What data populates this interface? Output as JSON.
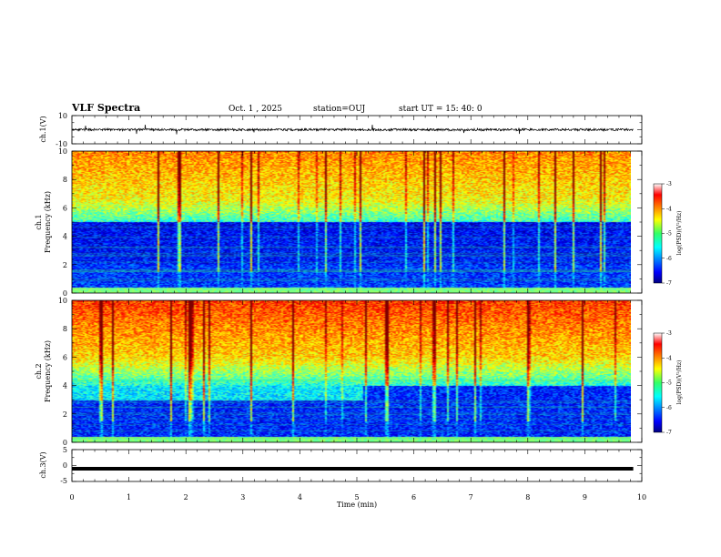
{
  "header": {
    "title": "VLF Spectra",
    "date": "Oct. 1 , 2025",
    "station": "station=OUJ",
    "start": "start  UT =  15: 40: 0"
  },
  "chart_data": [
    {
      "type": "line",
      "name": "ch1-waveform",
      "ylabel": "ch.1(V)",
      "ylim": [
        -10,
        10
      ],
      "ytick_labels": [
        "10",
        "-10"
      ],
      "xlim": [
        0,
        10
      ],
      "data_extent_min": 9.85,
      "baseline": 0
    },
    {
      "type": "heatmap",
      "name": "ch1-spectrogram",
      "ylabel": "ch.1\nFrequency (kHz)",
      "ylim": [
        0,
        10
      ],
      "ytick_labels": [
        "0",
        "2",
        "4",
        "6",
        "8",
        "10"
      ],
      "xlim": [
        0,
        10
      ],
      "data_extent_min": 9.85,
      "value_range": [
        -7,
        -3
      ],
      "colorbar_label": "log(PSD)(V²/Hz)",
      "colorbar_ticks": [
        "-3",
        "-4",
        "-5",
        "-6",
        "-7"
      ]
    },
    {
      "type": "heatmap",
      "name": "ch2-spectrogram",
      "ylabel": "ch.2\nFrequency (kHz)",
      "ylim": [
        0,
        10
      ],
      "ytick_labels": [
        "0",
        "2",
        "4",
        "6",
        "8",
        "10"
      ],
      "xlim": [
        0,
        10
      ],
      "data_extent_min": 9.85,
      "value_range": [
        -7,
        -3
      ],
      "colorbar_label": "log(PSD)(V²/Hz)",
      "colorbar_ticks": [
        "-3",
        "-4",
        "-5",
        "-6",
        "-7"
      ]
    },
    {
      "type": "line",
      "name": "ch3-waveform",
      "ylabel": "ch.3(V)",
      "ylim": [
        -5,
        5
      ],
      "ytick_labels": [
        "5",
        "0",
        "-5"
      ],
      "xlim": [
        0,
        10
      ],
      "data_extent_min": 9.85,
      "baseline": -1
    }
  ],
  "xaxis": {
    "label": "Time (min)",
    "ticks": [
      "0",
      "1",
      "2",
      "3",
      "4",
      "5",
      "6",
      "7",
      "8",
      "9",
      "10"
    ]
  }
}
